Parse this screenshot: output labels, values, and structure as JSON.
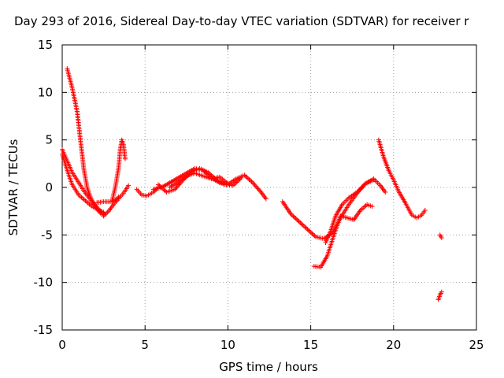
{
  "chart_data": {
    "type": "scatter",
    "title": "Day 293 of 2016, Sidereal Day-to-day VTEC variation (SDTVAR) for receiver r",
    "xlabel": "GPS time / hours",
    "ylabel": "SDTVAR / TECUs",
    "xlim": [
      0,
      25
    ],
    "ylim": [
      -15,
      15
    ],
    "xticks": [
      "0",
      "5",
      "10",
      "15",
      "20",
      "25"
    ],
    "yticks": [
      "-15",
      "-10",
      "-5",
      "0",
      "5",
      "10",
      "15"
    ],
    "grid": true,
    "marker": "+",
    "color": "#ff0000",
    "series": [
      {
        "points": [
          [
            0.0,
            4.0
          ],
          [
            0.3,
            2.8
          ],
          [
            0.6,
            1.6
          ],
          [
            1.0,
            0.5
          ],
          [
            1.4,
            -0.6
          ],
          [
            1.8,
            -1.5
          ],
          [
            2.2,
            -2.3
          ],
          [
            2.5,
            -2.8
          ]
        ]
      },
      {
        "points": [
          [
            0.0,
            3.5
          ],
          [
            0.3,
            1.8
          ],
          [
            0.6,
            0.3
          ],
          [
            1.0,
            -0.8
          ],
          [
            1.4,
            -1.4
          ],
          [
            1.8,
            -2.0
          ],
          [
            2.2,
            -2.4
          ],
          [
            2.5,
            -2.6
          ]
        ]
      },
      {
        "points": [
          [
            0.3,
            12.5
          ],
          [
            0.6,
            10.5
          ],
          [
            0.9,
            8.0
          ],
          [
            1.1,
            5.0
          ],
          [
            1.3,
            2.0
          ],
          [
            1.5,
            0.0
          ],
          [
            1.7,
            -1.0
          ],
          [
            2.0,
            -2.0
          ],
          [
            2.3,
            -2.7
          ],
          [
            2.5,
            -3.0
          ]
        ]
      },
      {
        "points": [
          [
            2.5,
            -3.0
          ],
          [
            2.8,
            -2.5
          ],
          [
            3.1,
            -1.8
          ],
          [
            3.4,
            -1.2
          ],
          [
            3.7,
            -0.6
          ],
          [
            4.0,
            0.2
          ]
        ]
      },
      {
        "points": [
          [
            2.1,
            -1.6
          ],
          [
            2.5,
            -1.5
          ],
          [
            2.9,
            -1.5
          ],
          [
            3.2,
            -1.4
          ],
          [
            3.4,
            -1.0
          ]
        ]
      },
      {
        "points": [
          [
            3.0,
            -1.5
          ],
          [
            3.2,
            0.0
          ],
          [
            3.4,
            2.0
          ],
          [
            3.5,
            4.0
          ],
          [
            3.6,
            5.0
          ],
          [
            3.7,
            4.5
          ],
          [
            3.8,
            3.0
          ]
        ]
      },
      {
        "points": [
          [
            4.5,
            -0.2
          ],
          [
            4.8,
            -0.8
          ],
          [
            5.1,
            -0.9
          ],
          [
            5.5,
            -0.5
          ],
          [
            5.8,
            0.0
          ]
        ]
      },
      {
        "points": [
          [
            5.5,
            -0.2
          ],
          [
            6.0,
            0.0
          ],
          [
            6.5,
            0.5
          ],
          [
            7.0,
            1.0
          ],
          [
            7.5,
            1.5
          ],
          [
            8.0,
            2.0
          ],
          [
            8.5,
            1.8
          ],
          [
            9.0,
            1.0
          ],
          [
            9.5,
            0.5
          ],
          [
            10.0,
            0.3
          ],
          [
            10.5,
            0.9
          ],
          [
            11.0,
            1.3
          ],
          [
            11.5,
            0.5
          ],
          [
            12.0,
            -0.5
          ],
          [
            12.3,
            -1.2
          ]
        ]
      },
      {
        "points": [
          [
            5.8,
            0.3
          ],
          [
            6.3,
            -0.5
          ],
          [
            6.8,
            -0.2
          ],
          [
            7.3,
            0.8
          ],
          [
            7.8,
            1.6
          ],
          [
            8.3,
            2.0
          ],
          [
            8.8,
            1.6
          ],
          [
            9.3,
            0.8
          ],
          [
            9.8,
            0.3
          ],
          [
            10.3,
            0.2
          ],
          [
            10.8,
            1.0
          ]
        ]
      },
      {
        "points": [
          [
            6.5,
            0.0
          ],
          [
            7.0,
            0.6
          ],
          [
            7.5,
            1.2
          ],
          [
            8.0,
            1.5
          ],
          [
            8.5,
            1.2
          ],
          [
            9.0,
            0.9
          ],
          [
            9.5,
            1.1
          ],
          [
            10.0,
            0.4
          ]
        ]
      },
      {
        "points": [
          [
            13.3,
            -1.5
          ],
          [
            13.8,
            -2.8
          ],
          [
            14.3,
            -3.6
          ],
          [
            14.8,
            -4.4
          ],
          [
            15.3,
            -5.2
          ],
          [
            15.8,
            -5.4
          ],
          [
            16.3,
            -4.8
          ],
          [
            16.8,
            -3.2
          ],
          [
            17.3,
            -1.8
          ],
          [
            17.8,
            -0.6
          ],
          [
            18.3,
            0.4
          ],
          [
            18.8,
            0.9
          ],
          [
            19.2,
            0.2
          ],
          [
            19.5,
            -0.5
          ]
        ]
      },
      {
        "points": [
          [
            15.2,
            -8.3
          ],
          [
            15.6,
            -8.4
          ],
          [
            16.0,
            -7.2
          ],
          [
            16.4,
            -5.0
          ],
          [
            16.8,
            -3.0
          ],
          [
            17.2,
            -3.2
          ],
          [
            17.6,
            -3.4
          ],
          [
            18.0,
            -2.4
          ],
          [
            18.4,
            -1.8
          ],
          [
            18.7,
            -2.0
          ]
        ]
      },
      {
        "points": [
          [
            15.9,
            -5.8
          ],
          [
            16.2,
            -4.6
          ],
          [
            16.5,
            -3.0
          ],
          [
            16.9,
            -1.8
          ],
          [
            17.3,
            -1.1
          ],
          [
            17.8,
            -0.5
          ],
          [
            18.3,
            0.4
          ],
          [
            18.8,
            0.8
          ]
        ]
      },
      {
        "points": [
          [
            19.1,
            5.0
          ],
          [
            19.4,
            3.2
          ],
          [
            19.7,
            1.8
          ],
          [
            20.0,
            0.8
          ],
          [
            20.3,
            -0.4
          ],
          [
            20.7,
            -1.6
          ],
          [
            21.1,
            -2.9
          ],
          [
            21.4,
            -3.2
          ],
          [
            21.7,
            -2.9
          ],
          [
            21.9,
            -2.4
          ]
        ]
      },
      {
        "points": [
          [
            22.8,
            -5.0
          ],
          [
            22.9,
            -5.3
          ]
        ]
      },
      {
        "points": [
          [
            22.7,
            -11.8
          ],
          [
            22.8,
            -11.3
          ],
          [
            22.9,
            -11.0
          ]
        ]
      }
    ]
  }
}
